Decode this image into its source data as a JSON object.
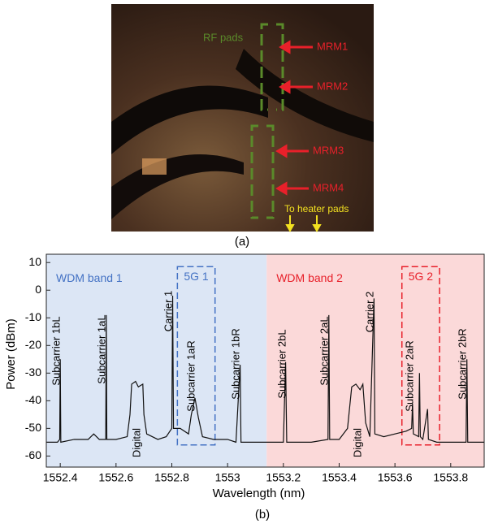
{
  "photo": {
    "caption": "(a)",
    "labels": [
      "RF pads",
      "MRM1",
      "MRM2",
      "MRM3",
      "MRM4",
      "To heater pads"
    ]
  },
  "chart_data": {
    "type": "line",
    "caption": "(b)",
    "x_label": "Wavelength (nm)",
    "y_label": "Power (dBm)",
    "xlim": [
      1552.35,
      1553.92
    ],
    "ylim": [
      -64,
      13
    ],
    "xticks": [
      1552.4,
      1552.6,
      1552.8,
      1553,
      1553.2,
      1553.4,
      1553.6,
      1553.8
    ],
    "yticks": [
      10,
      0,
      -10,
      -20,
      -30,
      -40,
      -50,
      -60
    ],
    "regions": [
      {
        "label": "WDM band 1",
        "range": [
          1552.35,
          1553.14
        ],
        "color": "#dce6f5",
        "text_color": "#4472c4"
      },
      {
        "label": "WDM band 2",
        "range": [
          1553.14,
          1553.92
        ],
        "color": "#fbd9d9",
        "text_color": "#e8202a"
      }
    ],
    "boxes": [
      {
        "label": "5G 1",
        "x": [
          1552.82,
          1552.955
        ],
        "y": [
          -56,
          8.5
        ],
        "color": "#4472c4"
      },
      {
        "label": "5G 2",
        "x": [
          1553.625,
          1553.76
        ],
        "y": [
          -56,
          8.5
        ],
        "color": "#e8202a"
      }
    ],
    "annotations": [
      "Subcarrier 1bL",
      "Subcarrier 1aL",
      "Digital",
      "Carrier 1",
      "Subcarrier 1aR",
      "Subcarrier 1bR",
      "Subcarrier 2bL",
      "Subcarrier 2aL",
      "Digital",
      "Carrier 2",
      "Subcarrier 2aR",
      "Subcarrier 2bR"
    ],
    "series": [
      {
        "color": "#111111",
        "x": [
          1552.35,
          1552.39,
          1552.398,
          1552.4,
          1552.402,
          1552.45,
          1552.5,
          1552.52,
          1552.54,
          1552.563,
          1552.565,
          1552.567,
          1552.6,
          1552.64,
          1552.65,
          1552.656,
          1552.67,
          1552.68,
          1552.696,
          1552.7,
          1552.71,
          1552.75,
          1552.78,
          1552.8,
          1552.803,
          1552.806,
          1552.83,
          1552.86,
          1552.87,
          1552.883,
          1552.895,
          1552.91,
          1552.95,
          1553.0,
          1553.03,
          1553.045,
          1553.048,
          1553.1,
          1553.15,
          1553.2,
          1553.208,
          1553.212,
          1553.25,
          1553.3,
          1553.36,
          1553.363,
          1553.366,
          1553.4,
          1553.43,
          1553.445,
          1553.46,
          1553.475,
          1553.485,
          1553.495,
          1553.51,
          1553.525,
          1553.528,
          1553.56,
          1553.6,
          1553.64,
          1553.66,
          1553.663,
          1553.666,
          1553.685,
          1553.688,
          1553.691,
          1553.7,
          1553.717,
          1553.72,
          1553.75,
          1553.8,
          1553.855,
          1553.858,
          1553.861,
          1553.9,
          1553.92
        ],
        "values": [
          -55,
          -55,
          -54,
          -25,
          -55,
          -54,
          -54,
          -52,
          -54,
          -54,
          -9,
          -54,
          -54,
          -53,
          -45,
          -34,
          -33,
          -35,
          -34,
          -45,
          -52,
          -54,
          -53,
          -50,
          -2,
          -50,
          -50,
          -52,
          -45,
          -39,
          -46,
          -53,
          -54,
          -54,
          -55,
          -27,
          -55,
          -55,
          -55,
          -55,
          -26,
          -55,
          -55,
          -55,
          -54,
          -9,
          -54,
          -54,
          -50,
          -35,
          -34,
          -36,
          -34,
          -48,
          -53,
          -3,
          -52,
          -53,
          -52,
          -51,
          -50,
          -41,
          -52,
          -53,
          -30,
          -53,
          -54,
          -43,
          -54,
          -55,
          -55,
          -55,
          -25,
          -55,
          -55,
          -55
        ]
      }
    ]
  }
}
